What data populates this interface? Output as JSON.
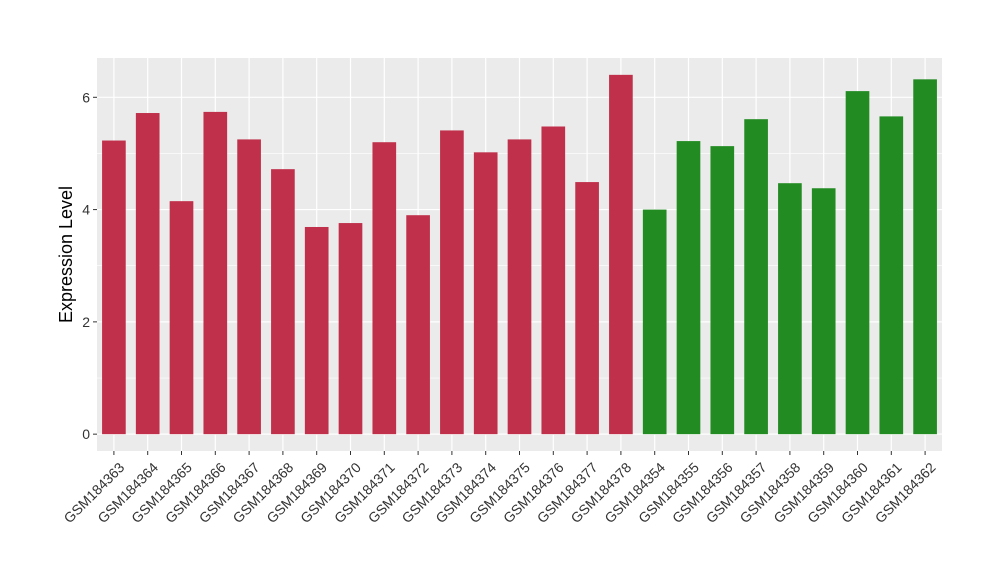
{
  "chart_data": {
    "type": "bar",
    "title": "",
    "xlabel": "",
    "ylabel": "Expression Level",
    "ylim": [
      -0.3,
      6.7
    ],
    "yticks": [
      0,
      2,
      4,
      6
    ],
    "grid": true,
    "background": "#ebebeb",
    "gridline_color": "#ffffff",
    "categories": [
      "GSM184363",
      "GSM184364",
      "GSM184365",
      "GSM184366",
      "GSM184367",
      "GSM184368",
      "GSM184369",
      "GSM184370",
      "GSM184371",
      "GSM184372",
      "GSM184373",
      "GSM184374",
      "GSM184375",
      "GSM184376",
      "GSM184377",
      "GSM184378",
      "GSM184354",
      "GSM184355",
      "GSM184356",
      "GSM184357",
      "GSM184358",
      "GSM184359",
      "GSM184360",
      "GSM184361",
      "GSM184362"
    ],
    "values": [
      5.23,
      5.72,
      4.15,
      5.74,
      5.25,
      4.72,
      3.69,
      3.76,
      5.2,
      3.9,
      5.41,
      5.02,
      5.25,
      5.48,
      4.49,
      6.4,
      4.0,
      5.22,
      5.13,
      5.61,
      4.47,
      4.38,
      6.11,
      5.66,
      6.32
    ],
    "bar_colors": [
      "#c0304a",
      "#c0304a",
      "#c0304a",
      "#c0304a",
      "#c0304a",
      "#c0304a",
      "#c0304a",
      "#c0304a",
      "#c0304a",
      "#c0304a",
      "#c0304a",
      "#c0304a",
      "#c0304a",
      "#c0304a",
      "#c0304a",
      "#c0304a",
      "#228b22",
      "#228b22",
      "#228b22",
      "#228b22",
      "#228b22",
      "#228b22",
      "#228b22",
      "#228b22",
      "#228b22"
    ]
  }
}
